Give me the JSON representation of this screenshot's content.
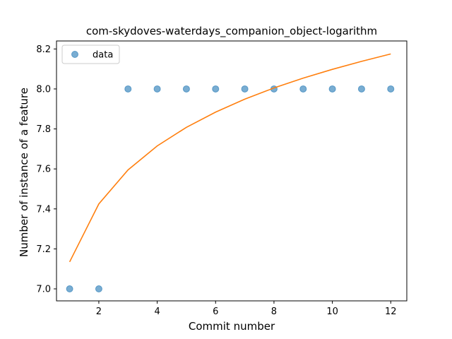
{
  "chart_data": {
    "type": "scatter",
    "title": "com-skydoves-waterdays_companion_object-logarithm",
    "xlabel": "Commit number",
    "ylabel": "Number of instance of a feature",
    "xlim": [
      0.55,
      12.55
    ],
    "ylim": [
      6.94,
      8.24
    ],
    "x_ticks": [
      2,
      4,
      6,
      8,
      10,
      12
    ],
    "y_ticks": [
      7.0,
      7.2,
      7.4,
      7.6,
      7.8,
      8.0,
      8.2
    ],
    "y_tick_labels": [
      "7.0",
      "7.2",
      "7.4",
      "7.6",
      "7.8",
      "8.0",
      "8.2"
    ],
    "grid": false,
    "legend_position": "top-left",
    "series": [
      {
        "name": "data",
        "kind": "scatter",
        "color": "#1f77b4",
        "x": [
          1,
          2,
          3,
          4,
          5,
          6,
          7,
          8,
          9,
          10,
          11,
          12
        ],
        "y": [
          7,
          7,
          8,
          8,
          8,
          8,
          8,
          8,
          8,
          8,
          8,
          8
        ]
      },
      {
        "kind": "line",
        "color": "#ff7f0e",
        "x": [
          1,
          2,
          3,
          4,
          5,
          6,
          7,
          8,
          9,
          10,
          11,
          12
        ],
        "y": [
          7.135,
          7.425,
          7.595,
          7.715,
          7.808,
          7.884,
          7.949,
          8.005,
          8.054,
          8.098,
          8.138,
          8.175
        ]
      }
    ]
  }
}
